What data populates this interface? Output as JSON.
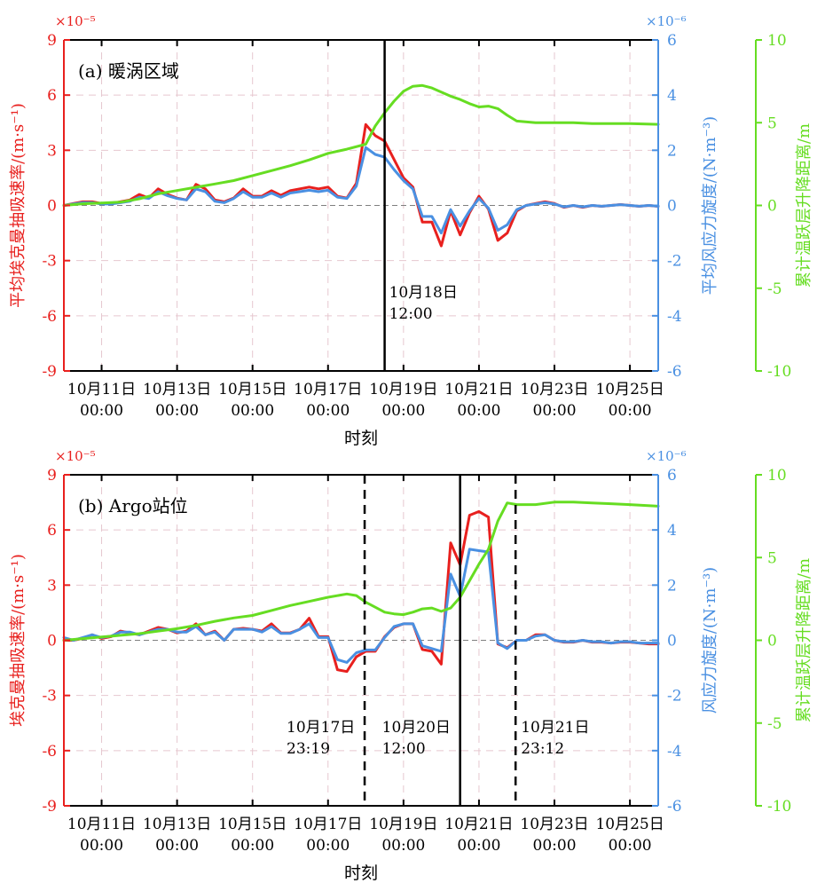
{
  "colors": {
    "red": "#e8201e",
    "blue": "#4a90e2",
    "green": "#66dd22",
    "black": "#000000",
    "grid": "#e6c7cf",
    "zero": "#808080"
  },
  "chart_data": [
    {
      "type": "line",
      "panel_label": "(a) 暖涡区域",
      "xlabel": "时刻",
      "x_range": [
        10.0,
        25.75
      ],
      "x_ticks": [
        11,
        13,
        15,
        17,
        19,
        21,
        23,
        25
      ],
      "x_tick_labels": [
        [
          "10月11日",
          "00:00"
        ],
        [
          "10月13日",
          "00:00"
        ],
        [
          "10月15日",
          "00:00"
        ],
        [
          "10月17日",
          "00:00"
        ],
        [
          "10月19日",
          "00:00"
        ],
        [
          "10月21日",
          "00:00"
        ],
        [
          "10月23日",
          "00:00"
        ],
        [
          "10月25日",
          "00:00"
        ]
      ],
      "axes": [
        {
          "key": "left",
          "label": "平均埃克曼抽吸速率/(m·s⁻¹)",
          "exponent": "×10⁻⁵",
          "range": [
            -9,
            9
          ],
          "ticks": [
            -9,
            -6,
            -3,
            0,
            3,
            6,
            9
          ],
          "color": "#e8201e"
        },
        {
          "key": "right",
          "label": "平均风应力旋度/(N·m⁻³)",
          "exponent": "×10⁻⁶",
          "range": [
            -6,
            6
          ],
          "ticks": [
            -6,
            -4,
            -2,
            0,
            2,
            4,
            6
          ],
          "color": "#4a90e2"
        },
        {
          "key": "far",
          "label": "累计温跃层升降距离/m",
          "range": [
            -10,
            10
          ],
          "ticks": [
            -10,
            -5,
            0,
            5,
            10
          ],
          "color": "#66dd22"
        }
      ],
      "series": [
        {
          "axis": "left",
          "color": "#e8201e",
          "x": [
            10.0,
            10.25,
            10.5,
            10.75,
            11.0,
            11.25,
            11.5,
            11.75,
            12.0,
            12.25,
            12.5,
            12.75,
            13.0,
            13.25,
            13.5,
            13.75,
            14.0,
            14.25,
            14.5,
            14.75,
            15.0,
            15.25,
            15.5,
            15.75,
            16.0,
            16.25,
            16.5,
            16.75,
            17.0,
            17.25,
            17.5,
            17.75,
            18.0,
            18.25,
            18.5,
            18.75,
            19.0,
            19.25,
            19.5,
            19.75,
            20.0,
            20.25,
            20.5,
            20.75,
            21.0,
            21.25,
            21.5,
            21.75,
            22.0,
            22.25,
            22.5,
            22.75,
            23.0,
            23.25,
            23.5,
            23.75,
            24.0,
            24.25,
            24.5,
            24.75,
            25.0,
            25.25,
            25.5,
            25.75
          ],
          "y": [
            0.0,
            0.1,
            0.2,
            0.2,
            0.1,
            0.1,
            0.2,
            0.3,
            0.6,
            0.4,
            0.9,
            0.6,
            0.4,
            0.3,
            1.15,
            0.9,
            0.3,
            0.2,
            0.4,
            0.9,
            0.5,
            0.5,
            0.8,
            0.55,
            0.8,
            0.9,
            1.0,
            0.9,
            1.0,
            0.5,
            0.4,
            1.2,
            4.4,
            3.8,
            3.5,
            2.5,
            1.5,
            1.0,
            -0.9,
            -0.9,
            -2.2,
            -0.3,
            -1.6,
            -0.4,
            0.5,
            -0.2,
            -1.9,
            -1.5,
            -0.3,
            0.0,
            0.1,
            0.2,
            0.1,
            -0.1,
            0.0,
            -0.1,
            0.0,
            -0.05,
            0.0,
            0.05,
            0.0,
            -0.05,
            0.0,
            -0.05
          ]
        },
        {
          "axis": "right",
          "color": "#4a90e2",
          "x": [
            10.0,
            10.25,
            10.5,
            10.75,
            11.0,
            11.25,
            11.5,
            11.75,
            12.0,
            12.25,
            12.5,
            12.75,
            13.0,
            13.25,
            13.5,
            13.75,
            14.0,
            14.25,
            14.5,
            14.75,
            15.0,
            15.25,
            15.5,
            15.75,
            16.0,
            16.25,
            16.5,
            16.75,
            17.0,
            17.25,
            17.5,
            17.75,
            18.0,
            18.25,
            18.5,
            18.75,
            19.0,
            19.25,
            19.5,
            19.75,
            20.0,
            20.25,
            20.5,
            20.75,
            21.0,
            21.25,
            21.5,
            21.75,
            22.0,
            22.25,
            22.5,
            22.75,
            23.0,
            23.25,
            23.5,
            23.75,
            24.0,
            24.25,
            24.5,
            24.75,
            25.0,
            25.25,
            25.5,
            25.75
          ],
          "y": [
            0.0,
            0.05,
            0.1,
            0.1,
            0.05,
            0.05,
            0.1,
            0.15,
            0.3,
            0.25,
            0.5,
            0.35,
            0.25,
            0.2,
            0.6,
            0.5,
            0.15,
            0.1,
            0.25,
            0.5,
            0.3,
            0.3,
            0.45,
            0.3,
            0.45,
            0.5,
            0.55,
            0.5,
            0.55,
            0.3,
            0.25,
            0.7,
            2.1,
            1.85,
            1.75,
            1.3,
            0.9,
            0.6,
            -0.4,
            -0.4,
            -1.0,
            -0.15,
            -0.75,
            -0.2,
            0.25,
            -0.1,
            -0.9,
            -0.7,
            -0.15,
            0.0,
            0.05,
            0.1,
            0.05,
            -0.05,
            0.0,
            -0.05,
            0.0,
            -0.03,
            0.0,
            0.03,
            0.0,
            -0.03,
            0.0,
            -0.03
          ]
        },
        {
          "axis": "far",
          "color": "#66dd22",
          "x": [
            10.0,
            10.5,
            11.0,
            11.5,
            12.0,
            12.5,
            13.0,
            13.5,
            14.0,
            14.5,
            15.0,
            15.5,
            16.0,
            16.5,
            17.0,
            17.5,
            18.0,
            18.25,
            18.5,
            18.75,
            19.0,
            19.25,
            19.5,
            19.75,
            20.0,
            20.25,
            20.5,
            20.75,
            21.0,
            21.25,
            21.5,
            21.75,
            22.0,
            22.5,
            23.0,
            23.5,
            24.0,
            24.5,
            25.0,
            25.75
          ],
          "y": [
            0.0,
            0.1,
            0.15,
            0.2,
            0.4,
            0.7,
            0.9,
            1.1,
            1.3,
            1.5,
            1.8,
            2.1,
            2.4,
            2.75,
            3.15,
            3.4,
            3.7,
            4.8,
            5.6,
            6.3,
            6.9,
            7.2,
            7.25,
            7.1,
            6.85,
            6.6,
            6.4,
            6.15,
            5.95,
            6.0,
            5.85,
            5.45,
            5.1,
            5.0,
            5.0,
            5.0,
            4.95,
            4.95,
            4.95,
            4.9
          ]
        }
      ],
      "vlines": [
        {
          "x": 18.5,
          "style": "solid",
          "label": [
            "10月18日",
            "12:00"
          ]
        }
      ]
    },
    {
      "type": "line",
      "panel_label": "(b) Argo站位",
      "xlabel": "时刻",
      "x_range": [
        10.0,
        25.75
      ],
      "x_ticks": [
        11,
        13,
        15,
        17,
        19,
        21,
        23,
        25
      ],
      "x_tick_labels": [
        [
          "10月11日",
          "00:00"
        ],
        [
          "10月13日",
          "00:00"
        ],
        [
          "10月15日",
          "00:00"
        ],
        [
          "10月17日",
          "00:00"
        ],
        [
          "10月19日",
          "00:00"
        ],
        [
          "10月21日",
          "00:00"
        ],
        [
          "10月23日",
          "00:00"
        ],
        [
          "10月25日",
          "00:00"
        ]
      ],
      "axes": [
        {
          "key": "left",
          "label": "埃克曼抽吸速率/(m·s⁻¹)",
          "exponent": "×10⁻⁵",
          "range": [
            -9,
            9
          ],
          "ticks": [
            -9,
            -6,
            -3,
            0,
            3,
            6,
            9
          ],
          "color": "#e8201e"
        },
        {
          "key": "right",
          "label": "风应力旋度/(N·m⁻³)",
          "exponent": "×10⁻⁶",
          "range": [
            -6,
            6
          ],
          "ticks": [
            -6,
            -4,
            -2,
            0,
            2,
            4,
            6
          ],
          "color": "#4a90e2"
        },
        {
          "key": "far",
          "label": "累计温跃层升降距离/m",
          "range": [
            -10,
            10
          ],
          "ticks": [
            -10,
            -5,
            0,
            5,
            10
          ],
          "color": "#66dd22"
        }
      ],
      "series": [
        {
          "axis": "left",
          "color": "#e8201e",
          "x": [
            10.0,
            10.25,
            10.5,
            10.75,
            11.0,
            11.25,
            11.5,
            11.75,
            12.0,
            12.25,
            12.5,
            12.75,
            13.0,
            13.25,
            13.5,
            13.75,
            14.0,
            14.25,
            14.5,
            14.75,
            15.0,
            15.25,
            15.5,
            15.75,
            16.0,
            16.25,
            16.5,
            16.75,
            17.0,
            17.25,
            17.5,
            17.75,
            18.0,
            18.25,
            18.5,
            18.75,
            19.0,
            19.25,
            19.5,
            19.75,
            20.0,
            20.25,
            20.5,
            20.75,
            21.0,
            21.25,
            21.5,
            21.75,
            22.0,
            22.25,
            22.5,
            22.75,
            23.0,
            23.25,
            23.5,
            23.75,
            24.0,
            24.25,
            24.5,
            24.75,
            25.0,
            25.25,
            25.5,
            25.75
          ],
          "y": [
            0.0,
            0.0,
            0.1,
            0.3,
            0.1,
            0.2,
            0.5,
            0.4,
            0.3,
            0.5,
            0.7,
            0.6,
            0.4,
            0.5,
            0.9,
            0.3,
            0.5,
            0.0,
            0.6,
            0.65,
            0.6,
            0.5,
            0.9,
            0.4,
            0.4,
            0.6,
            1.2,
            0.2,
            0.2,
            -1.6,
            -1.7,
            -0.9,
            -0.6,
            -0.6,
            0.2,
            0.7,
            0.9,
            0.9,
            -0.5,
            -0.6,
            -1.3,
            5.3,
            4.1,
            6.8,
            7.0,
            6.7,
            -0.2,
            -0.4,
            0.0,
            0.0,
            0.3,
            0.3,
            0.0,
            -0.1,
            -0.1,
            0.0,
            -0.1,
            -0.1,
            -0.15,
            -0.1,
            -0.1,
            -0.15,
            -0.2,
            -0.2
          ]
        },
        {
          "axis": "right",
          "color": "#4a90e2",
          "x": [
            10.0,
            10.25,
            10.5,
            10.75,
            11.0,
            11.25,
            11.5,
            11.75,
            12.0,
            12.25,
            12.5,
            12.75,
            13.0,
            13.25,
            13.5,
            13.75,
            14.0,
            14.25,
            14.5,
            14.75,
            15.0,
            15.25,
            15.5,
            15.75,
            16.0,
            16.25,
            16.5,
            16.75,
            17.0,
            17.25,
            17.5,
            17.75,
            18.0,
            18.25,
            18.5,
            18.75,
            19.0,
            19.25,
            19.5,
            19.75,
            20.0,
            20.25,
            20.5,
            20.75,
            21.0,
            21.25,
            21.5,
            21.75,
            22.0,
            22.25,
            22.5,
            22.75,
            23.0,
            23.25,
            23.5,
            23.75,
            24.0,
            24.25,
            24.5,
            24.75,
            25.0,
            25.25,
            25.5,
            25.75
          ],
          "y": [
            0.1,
            0.0,
            0.1,
            0.2,
            0.1,
            0.15,
            0.3,
            0.3,
            0.2,
            0.3,
            0.4,
            0.4,
            0.3,
            0.3,
            0.5,
            0.2,
            0.3,
            0.0,
            0.4,
            0.4,
            0.4,
            0.3,
            0.5,
            0.25,
            0.25,
            0.4,
            0.6,
            0.1,
            0.1,
            -0.7,
            -0.8,
            -0.45,
            -0.35,
            -0.35,
            0.1,
            0.5,
            0.6,
            0.6,
            -0.2,
            -0.3,
            -0.4,
            2.4,
            1.6,
            3.3,
            3.25,
            3.2,
            -0.1,
            -0.3,
            0.0,
            0.0,
            0.15,
            0.2,
            0.0,
            -0.05,
            -0.05,
            0.0,
            -0.05,
            -0.05,
            -0.1,
            -0.05,
            -0.05,
            -0.1,
            -0.1,
            -0.1
          ]
        },
        {
          "axis": "far",
          "color": "#66dd22",
          "x": [
            10.0,
            10.5,
            11.0,
            11.5,
            12.0,
            12.5,
            13.0,
            13.5,
            14.0,
            14.5,
            15.0,
            15.5,
            16.0,
            16.5,
            17.0,
            17.5,
            17.75,
            18.0,
            18.25,
            18.5,
            18.75,
            19.0,
            19.25,
            19.5,
            19.75,
            20.0,
            20.25,
            20.5,
            20.75,
            21.0,
            21.25,
            21.5,
            21.75,
            22.0,
            22.5,
            23.0,
            23.5,
            24.0,
            24.5,
            25.0,
            25.75
          ],
          "y": [
            0.0,
            0.1,
            0.2,
            0.3,
            0.4,
            0.55,
            0.7,
            0.9,
            1.15,
            1.35,
            1.5,
            1.8,
            2.1,
            2.35,
            2.6,
            2.8,
            2.7,
            2.3,
            2.0,
            1.7,
            1.6,
            1.55,
            1.7,
            1.9,
            1.95,
            1.75,
            1.95,
            2.6,
            3.6,
            4.6,
            5.5,
            7.2,
            8.3,
            8.2,
            8.2,
            8.35,
            8.35,
            8.3,
            8.25,
            8.2,
            8.1
          ]
        }
      ],
      "vlines": [
        {
          "x": 17.97,
          "style": "dashed",
          "label": [
            "10月17日",
            "23:19"
          ]
        },
        {
          "x": 20.5,
          "style": "solid",
          "label": [
            "10月20日",
            "12:00"
          ]
        },
        {
          "x": 21.97,
          "style": "dashed",
          "label": [
            "10月21日",
            "23:12"
          ]
        }
      ]
    }
  ]
}
